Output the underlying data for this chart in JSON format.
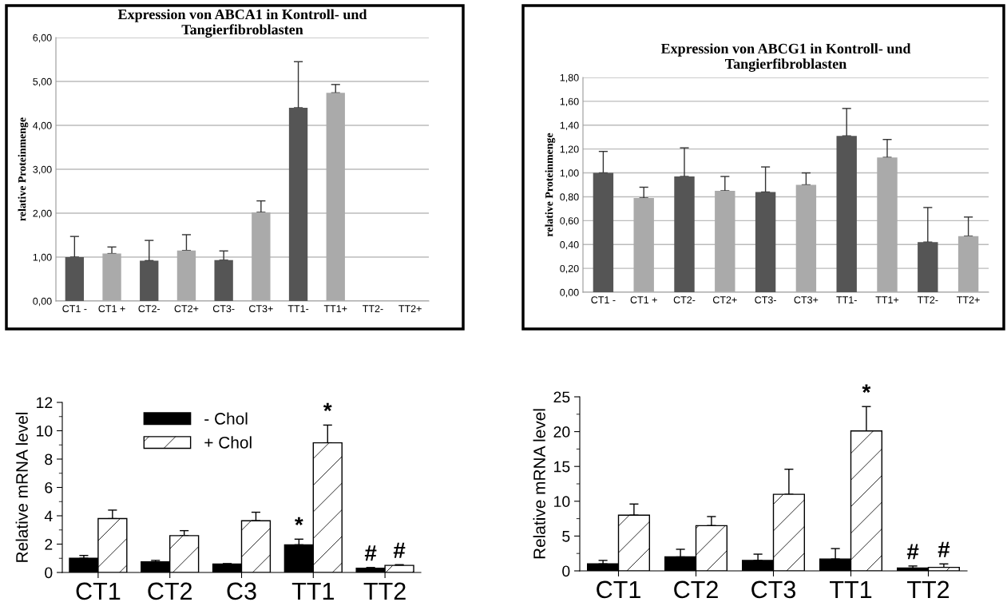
{
  "chart_data": [
    {
      "type": "bar",
      "title": "Expression von ABCA1 in Kontroll- und\nTangierfibroblasten",
      "ylabel": "relative Proteinmenge",
      "categories": [
        "CT1 -",
        "CT1 +",
        "CT2-",
        "CT2+",
        "CT3-",
        "CT3+",
        "TT1-",
        "TT1+",
        "TT2-",
        "TT2+"
      ],
      "values": [
        1.0,
        1.08,
        0.92,
        1.15,
        0.93,
        2.02,
        4.4,
        4.74,
        null,
        null
      ],
      "errors": [
        [
          1.0,
          1.47
        ],
        [
          1.08,
          1.23
        ],
        [
          0.92,
          1.38
        ],
        [
          1.15,
          1.51
        ],
        [
          0.93,
          1.14
        ],
        [
          2.02,
          2.28
        ],
        [
          4.4,
          5.45
        ],
        [
          4.74,
          4.93
        ],
        null,
        null
      ],
      "colors": [
        "#555555",
        "#aaaaaa",
        "#555555",
        "#aaaaaa",
        "#555555",
        "#aaaaaa",
        "#555555",
        "#aaaaaa",
        "#555555",
        "#aaaaaa"
      ],
      "ylim": [
        0,
        6
      ],
      "yticks": [
        {
          "value": 0,
          "label": "0,00"
        },
        {
          "value": 1,
          "label": "1,00"
        },
        {
          "value": 2,
          "label": "2,00"
        },
        {
          "value": 3,
          "label": "3,00"
        },
        {
          "value": 4,
          "label": "4,00"
        },
        {
          "value": 5,
          "label": "5,00"
        },
        {
          "value": 6,
          "label": "6,00"
        }
      ],
      "grid": "y"
    },
    {
      "type": "bar",
      "title": "Expression von ABCG1 in Kontroll- und\nTangierfibroblasten",
      "ylabel": "relative Proteinmenge",
      "categories": [
        "CT1 -",
        "CT1 +",
        "CT2-",
        "CT2+",
        "CT3-",
        "CT3+",
        "TT1-",
        "TT1+",
        "TT2-",
        "TT2+"
      ],
      "values": [
        1.0,
        0.79,
        0.97,
        0.85,
        0.84,
        0.9,
        1.31,
        1.13,
        0.42,
        0.47
      ],
      "errors": [
        [
          1.0,
          1.18
        ],
        [
          0.79,
          0.88
        ],
        [
          0.97,
          1.21
        ],
        [
          0.85,
          0.97
        ],
        [
          0.84,
          1.05
        ],
        [
          0.9,
          1.0
        ],
        [
          1.31,
          1.54
        ],
        [
          1.13,
          1.28
        ],
        [
          0.42,
          0.71
        ],
        [
          0.47,
          0.63
        ]
      ],
      "colors": [
        "#555555",
        "#aaaaaa",
        "#555555",
        "#aaaaaa",
        "#555555",
        "#aaaaaa",
        "#555555",
        "#aaaaaa",
        "#555555",
        "#aaaaaa"
      ],
      "ylim": [
        0,
        1.8
      ],
      "yticks": [
        {
          "value": 0,
          "label": "0,00"
        },
        {
          "value": 0.2,
          "label": "0,20"
        },
        {
          "value": 0.4,
          "label": "0,40"
        },
        {
          "value": 0.6,
          "label": "0,60"
        },
        {
          "value": 0.8,
          "label": "0,80"
        },
        {
          "value": 1.0,
          "label": "1,00"
        },
        {
          "value": 1.2,
          "label": "1,20"
        },
        {
          "value": 1.4,
          "label": "1,40"
        },
        {
          "value": 1.6,
          "label": "1,60"
        },
        {
          "value": 1.8,
          "label": "1,80"
        }
      ],
      "grid": "y"
    },
    {
      "type": "bar",
      "ylabel": "Relative mRNA level",
      "categories": [
        "CT1",
        "CT2",
        "C3",
        "TT1",
        "TT2"
      ],
      "series": [
        {
          "name": "- Chol",
          "color": "#000000",
          "values": [
            1.0,
            0.75,
            0.6,
            1.95,
            0.3
          ],
          "errors": [
            [
              1.0,
              1.2
            ],
            [
              0.75,
              0.85
            ],
            [
              0.6,
              0.62
            ],
            [
              1.95,
              2.35
            ],
            [
              0.3,
              0.35
            ]
          ],
          "value_labels": [
            null,
            null,
            null,
            "*",
            "#"
          ]
        },
        {
          "name": "+ Chol",
          "color": "#ffffff",
          "values": [
            3.8,
            2.6,
            3.65,
            9.15,
            0.5
          ],
          "errors": [
            [
              3.8,
              4.4
            ],
            [
              2.6,
              2.95
            ],
            [
              3.65,
              4.25
            ],
            [
              9.15,
              10.4
            ],
            [
              0.5,
              0.55
            ]
          ],
          "value_labels": [
            null,
            null,
            null,
            "*",
            "#"
          ]
        }
      ],
      "ylim": [
        0,
        12
      ],
      "yticks": [
        0,
        2,
        4,
        6,
        8,
        10,
        12
      ],
      "legend": "top left",
      "grid": false
    },
    {
      "type": "bar",
      "ylabel": "Relative mRNA level",
      "categories": [
        "CT1",
        "CT2",
        "CT3",
        "TT1",
        "TT2"
      ],
      "series": [
        {
          "color": "#000000",
          "values": [
            1.0,
            2.0,
            1.5,
            1.7,
            0.4
          ],
          "errors": [
            [
              1.0,
              1.5
            ],
            [
              2.0,
              3.1
            ],
            [
              1.5,
              2.4
            ],
            [
              1.7,
              3.2
            ],
            [
              0.4,
              0.7
            ]
          ],
          "value_labels": [
            null,
            null,
            null,
            null,
            "#"
          ]
        },
        {
          "color": "#ffffff",
          "values": [
            8.0,
            6.5,
            11.0,
            20.1,
            0.5
          ],
          "errors": [
            [
              8.0,
              9.6
            ],
            [
              6.5,
              7.8
            ],
            [
              11.0,
              14.6
            ],
            [
              20.1,
              23.6
            ],
            [
              0.5,
              1.0
            ]
          ],
          "value_labels": [
            null,
            null,
            null,
            "*",
            "#"
          ]
        }
      ],
      "ylim": [
        0,
        25
      ],
      "yticks": [
        0,
        5,
        10,
        15,
        20,
        25
      ],
      "grid": false
    }
  ]
}
